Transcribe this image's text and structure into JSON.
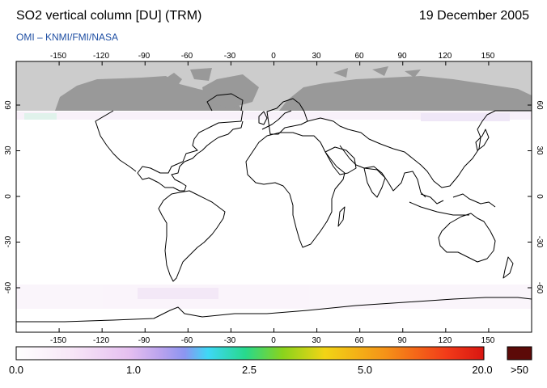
{
  "header": {
    "title": "SO2 vertical column [DU] (TRM)",
    "date": "19 December 2005",
    "credit": "OMI  –  KNMI/FMI/NASA"
  },
  "map": {
    "lon_ticks": [
      "-150",
      "-120",
      "-90",
      "-60",
      "-30",
      "0",
      "30",
      "60",
      "90",
      "120",
      "150"
    ],
    "lat_ticks": [
      "60",
      "30",
      "0",
      "-30",
      "-60"
    ],
    "polar_night_color": "#cccccc",
    "land_color_polar": "#999999",
    "coast_color": "#000000"
  },
  "colorbar": {
    "labels": [
      "0.0",
      "1.0",
      "2.5",
      "5.0",
      "20.0",
      ">50"
    ],
    "colors": [
      "#ffffff",
      "#f3dcf3",
      "#d6a6ec",
      "#9c8cf0",
      "#3ed8f6",
      "#25d989",
      "#8ad31c",
      "#f2d415",
      "#f59218",
      "#f23b19",
      "#cf1611",
      "#5c0a08"
    ]
  }
}
